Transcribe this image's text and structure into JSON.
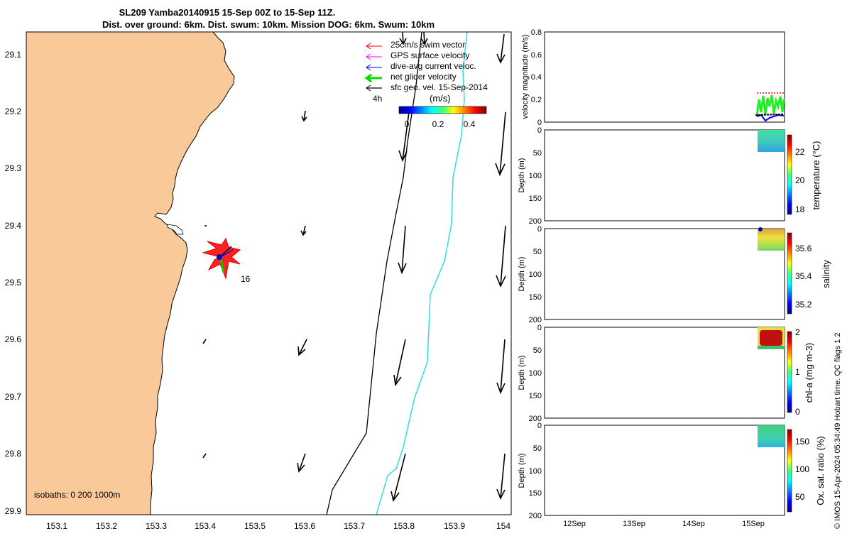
{
  "title": {
    "line1": "SL209 Yamba20140915 15-Sep 00Z to 15-Sep 11Z.",
    "line2": "Dist. over ground: 6km. Dist. swum: 10km. Mission DOG: 6km. Swum: 10km"
  },
  "map": {
    "x_ticks": [
      "153.1",
      "153.2",
      "153.3",
      "153.4",
      "153.5",
      "153.6",
      "153.7",
      "153.8",
      "153.9",
      "154"
    ],
    "y_ticks": [
      "29.1",
      "29.2",
      "29.3",
      "29.4",
      "29.5",
      "29.6",
      "29.7",
      "29.8",
      "29.9"
    ],
    "legend": [
      {
        "label": "25cm/s swim vector",
        "color": "#ff0000"
      },
      {
        "label": "GPS surface velocity",
        "color": "#ff00ff"
      },
      {
        "label": "dive-avg current veloc.",
        "color": "#0000ff"
      },
      {
        "label": "net glider velocity",
        "color": "#00dd00"
      },
      {
        "label": "sfc geo. vel. 15-Sep-2014",
        "color": "#000000"
      }
    ],
    "glider_label": "16",
    "interval_label": "4h",
    "colorbar": {
      "unit": "(m/s)",
      "ticks": [
        "0",
        "0.2",
        "0.4"
      ]
    },
    "isobaths_label": "isobaths: 0   200  1000m",
    "land_color": "#f9c99a"
  },
  "velocity_panel": {
    "ylabel": "velocity magnitude (m/s)",
    "y_ticks": [
      "0",
      "0.2",
      "0.4",
      "0.6",
      "0.8"
    ]
  },
  "depth_ylabel": "Depth (m)",
  "depth_ticks": [
    "0",
    "50",
    "100",
    "150",
    "200"
  ],
  "profiles": [
    {
      "cbar_label": "temperature (°C)",
      "cbar_ticks": [
        "18",
        "20",
        "22"
      ]
    },
    {
      "cbar_label": "salinity",
      "cbar_ticks": [
        "35.2",
        "35.4",
        "35.6"
      ]
    },
    {
      "cbar_label": "chl-a (mg m-3)",
      "cbar_ticks": [
        "0",
        "1",
        "2"
      ]
    },
    {
      "cbar_label": "Ox. sat. ratio (%)",
      "cbar_ticks": [
        "50",
        "100",
        "150"
      ]
    }
  ],
  "x_date_ticks": [
    "12Sep",
    "13Sep",
    "14Sep",
    "15Sep"
  ],
  "credit": "© IMOS 15-Apr-2024 05:34:49 Hobart time. QC flags 1  2",
  "chart_data": {
    "type": "scatter",
    "title": "SL209 Yamba20140915 15-Sep 00Z to 15-Sep 11Z.",
    "xlim": [
      153.03,
      154.02
    ],
    "ylim": [
      29.05,
      29.91
    ],
    "glider_position": {
      "x": 153.43,
      "y": 29.455
    },
    "isobaths_m": [
      0,
      200,
      1000
    ],
    "velocity_range": [
      0,
      0.8
    ],
    "depth_range": [
      0,
      200
    ]
  }
}
